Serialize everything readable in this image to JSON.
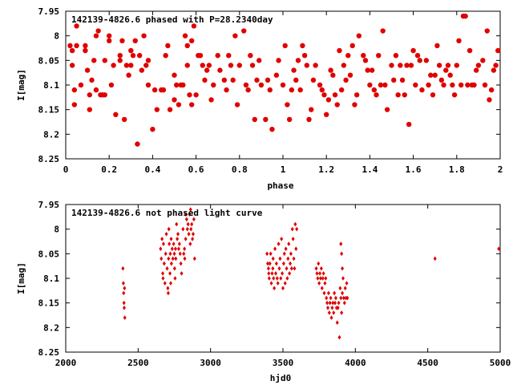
{
  "chart_data": [
    {
      "type": "scatter",
      "title": "142139-4826.6 phased with P=28.2340day",
      "xlabel": "phase",
      "ylabel": "I[mag]",
      "xlim": [
        0,
        2
      ],
      "ylim": [
        8.25,
        7.95
      ],
      "y_inverted": true,
      "xticks": [
        "0",
        "0.2",
        "0.4",
        "0.6",
        "0.8",
        "1",
        "1.2",
        "1.4",
        "1.6",
        "1.8",
        "2"
      ],
      "yticks": [
        "7.95",
        "8",
        "8.05",
        "8.1",
        "8.15",
        "8.2",
        "8.25"
      ],
      "marker": "filled-circle",
      "color": "#e00000",
      "points": [
        [
          0.02,
          8.02
        ],
        [
          0.03,
          8.03
        ],
        [
          0.03,
          8.06
        ],
        [
          0.04,
          8.14
        ],
        [
          0.04,
          8.11
        ],
        [
          0.05,
          7.98
        ],
        [
          0.05,
          8.02
        ],
        [
          0.07,
          8.1
        ],
        [
          0.09,
          8.02
        ],
        [
          0.09,
          8.03
        ],
        [
          0.1,
          8.07
        ],
        [
          0.11,
          8.12
        ],
        [
          0.11,
          8.15
        ],
        [
          0.12,
          8.09
        ],
        [
          0.13,
          8.05
        ],
        [
          0.14,
          8.0
        ],
        [
          0.14,
          8.11
        ],
        [
          0.15,
          7.99
        ],
        [
          0.16,
          8.12
        ],
        [
          0.17,
          8.12
        ],
        [
          0.18,
          8.12
        ],
        [
          0.18,
          8.05
        ],
        [
          0.2,
          8.0
        ],
        [
          0.2,
          8.01
        ],
        [
          0.21,
          8.1
        ],
        [
          0.22,
          8.06
        ],
        [
          0.23,
          8.16
        ],
        [
          0.25,
          8.04
        ],
        [
          0.25,
          8.05
        ],
        [
          0.26,
          8.01
        ],
        [
          0.27,
          8.17
        ],
        [
          0.28,
          8.06
        ],
        [
          0.29,
          8.08
        ],
        [
          0.3,
          8.06
        ],
        [
          0.3,
          8.03
        ],
        [
          0.31,
          8.04
        ],
        [
          0.32,
          8.01
        ],
        [
          0.33,
          8.22
        ],
        [
          0.34,
          8.04
        ],
        [
          0.35,
          8.07
        ],
        [
          0.36,
          8.0
        ],
        [
          0.37,
          8.06
        ],
        [
          0.38,
          8.1
        ],
        [
          0.38,
          8.05
        ],
        [
          0.4,
          8.19
        ],
        [
          0.41,
          8.11
        ],
        [
          0.42,
          8.15
        ],
        [
          0.44,
          8.11
        ],
        [
          0.45,
          8.11
        ],
        [
          0.46,
          8.04
        ],
        [
          0.47,
          8.02
        ],
        [
          0.48,
          8.15
        ],
        [
          0.5,
          8.08
        ],
        [
          0.5,
          8.13
        ],
        [
          0.51,
          8.1
        ],
        [
          0.52,
          8.14
        ],
        [
          0.53,
          8.1
        ],
        [
          0.54,
          8.1
        ],
        [
          0.55,
          8.0
        ],
        [
          0.56,
          8.02
        ],
        [
          0.56,
          8.06
        ],
        [
          0.57,
          8.12
        ],
        [
          0.58,
          8.01
        ],
        [
          0.58,
          8.14
        ],
        [
          0.59,
          7.98
        ],
        [
          0.6,
          8.12
        ],
        [
          0.61,
          8.04
        ],
        [
          0.62,
          8.04
        ],
        [
          0.63,
          8.06
        ],
        [
          0.64,
          8.09
        ],
        [
          0.65,
          8.07
        ],
        [
          0.66,
          8.06
        ],
        [
          0.67,
          8.13
        ],
        [
          0.68,
          8.1
        ],
        [
          0.7,
          8.04
        ],
        [
          0.71,
          8.07
        ],
        [
          0.73,
          8.09
        ],
        [
          0.74,
          8.11
        ],
        [
          0.75,
          8.04
        ],
        [
          0.76,
          8.06
        ],
        [
          0.77,
          8.09
        ],
        [
          0.78,
          8.0
        ],
        [
          0.79,
          8.14
        ],
        [
          0.8,
          8.06
        ],
        [
          0.82,
          7.99
        ],
        [
          0.83,
          8.1
        ],
        [
          0.84,
          8.11
        ],
        [
          0.85,
          8.04
        ],
        [
          0.86,
          8.06
        ],
        [
          0.87,
          8.17
        ],
        [
          0.88,
          8.09
        ],
        [
          0.89,
          8.05
        ],
        [
          0.9,
          8.1
        ],
        [
          0.92,
          8.17
        ],
        [
          0.93,
          8.09
        ],
        [
          0.94,
          8.11
        ],
        [
          0.95,
          8.19
        ],
        [
          0.97,
          8.08
        ],
        [
          0.98,
          8.05
        ],
        [
          1.0,
          8.1
        ],
        [
          1.01,
          8.02
        ],
        [
          1.02,
          8.14
        ],
        [
          1.03,
          8.17
        ],
        [
          1.04,
          8.11
        ],
        [
          1.05,
          8.07
        ],
        [
          1.06,
          8.09
        ],
        [
          1.07,
          8.05
        ],
        [
          1.08,
          8.11
        ],
        [
          1.09,
          8.02
        ],
        [
          1.1,
          8.04
        ],
        [
          1.11,
          8.06
        ],
        [
          1.12,
          8.17
        ],
        [
          1.13,
          8.15
        ],
        [
          1.14,
          8.09
        ],
        [
          1.15,
          8.06
        ],
        [
          1.17,
          8.1
        ],
        [
          1.18,
          8.11
        ],
        [
          1.19,
          8.12
        ],
        [
          1.2,
          8.16
        ],
        [
          1.21,
          8.13
        ],
        [
          1.22,
          8.07
        ],
        [
          1.23,
          8.08
        ],
        [
          1.24,
          8.12
        ],
        [
          1.25,
          8.14
        ],
        [
          1.26,
          8.03
        ],
        [
          1.27,
          8.11
        ],
        [
          1.28,
          8.06
        ],
        [
          1.29,
          8.09
        ],
        [
          1.3,
          8.04
        ],
        [
          1.31,
          8.08
        ],
        [
          1.32,
          8.02
        ],
        [
          1.33,
          8.14
        ],
        [
          1.34,
          8.12
        ],
        [
          1.35,
          8.0
        ],
        [
          1.37,
          8.04
        ],
        [
          1.38,
          8.05
        ],
        [
          1.39,
          8.07
        ],
        [
          1.4,
          8.1
        ],
        [
          1.41,
          8.07
        ],
        [
          1.42,
          8.11
        ],
        [
          1.43,
          8.12
        ],
        [
          1.44,
          8.04
        ],
        [
          1.45,
          8.1
        ],
        [
          1.46,
          7.99
        ],
        [
          1.47,
          8.1
        ],
        [
          1.48,
          8.15
        ],
        [
          1.5,
          8.06
        ],
        [
          1.51,
          8.09
        ],
        [
          1.52,
          8.04
        ],
        [
          1.53,
          8.12
        ],
        [
          1.54,
          8.06
        ],
        [
          1.55,
          8.09
        ],
        [
          1.56,
          8.12
        ],
        [
          1.57,
          8.06
        ],
        [
          1.58,
          8.18
        ],
        [
          1.59,
          8.06
        ],
        [
          1.6,
          8.03
        ],
        [
          1.61,
          8.1
        ],
        [
          1.62,
          8.04
        ],
        [
          1.63,
          8.05
        ],
        [
          1.64,
          8.11
        ],
        [
          1.66,
          8.05
        ],
        [
          1.67,
          8.1
        ],
        [
          1.68,
          8.08
        ],
        [
          1.69,
          8.12
        ],
        [
          1.7,
          8.08
        ],
        [
          1.71,
          8.02
        ],
        [
          1.72,
          8.06
        ],
        [
          1.73,
          8.09
        ],
        [
          1.74,
          8.1
        ],
        [
          1.75,
          8.07
        ],
        [
          1.76,
          8.06
        ],
        [
          1.77,
          8.08
        ],
        [
          1.78,
          8.1
        ],
        [
          1.79,
          8.12
        ],
        [
          1.8,
          8.06
        ],
        [
          1.81,
          8.01
        ],
        [
          1.82,
          8.1
        ],
        [
          1.83,
          7.96
        ],
        [
          1.84,
          7.96
        ],
        [
          1.85,
          8.1
        ],
        [
          1.86,
          8.03
        ],
        [
          1.87,
          8.1
        ],
        [
          1.88,
          8.1
        ],
        [
          1.89,
          8.07
        ],
        [
          1.9,
          8.06
        ],
        [
          1.92,
          8.05
        ],
        [
          1.93,
          8.1
        ],
        [
          1.94,
          7.99
        ],
        [
          1.95,
          8.13
        ],
        [
          1.96,
          8.11
        ],
        [
          1.97,
          8.07
        ],
        [
          1.98,
          8.06
        ],
        [
          1.99,
          8.03
        ]
      ]
    },
    {
      "type": "scatter",
      "title": "142139-4826.6 not phased light curve",
      "xlabel": "hjd0",
      "ylabel": "I[mag]",
      "xlim": [
        2000,
        5000
      ],
      "ylim": [
        8.25,
        7.95
      ],
      "y_inverted": true,
      "xticks": [
        "2000",
        "2500",
        "3000",
        "3500",
        "4000",
        "4500",
        "5000"
      ],
      "yticks": [
        "7.95",
        "8",
        "8.05",
        "8.1",
        "8.15",
        "8.2",
        "8.25"
      ],
      "marker": "filled-diamond",
      "color": "#e00000",
      "points": [
        [
          2395,
          8.08
        ],
        [
          2398,
          8.11
        ],
        [
          2400,
          8.13
        ],
        [
          2402,
          8.15
        ],
        [
          2404,
          8.16
        ],
        [
          2406,
          8.12
        ],
        [
          2408,
          8.18
        ],
        [
          2655,
          8.04
        ],
        [
          2660,
          8.06
        ],
        [
          2665,
          8.02
        ],
        [
          2670,
          8.09
        ],
        [
          2672,
          8.1
        ],
        [
          2675,
          8.03
        ],
        [
          2680,
          8.07
        ],
        [
          2685,
          8.11
        ],
        [
          2690,
          8.05
        ],
        [
          2695,
          8.01
        ],
        [
          2700,
          8.08
        ],
        [
          2705,
          8.12
        ],
        [
          2708,
          8.13
        ],
        [
          2710,
          8.06
        ],
        [
          2712,
          8.0
        ],
        [
          2715,
          8.03
        ],
        [
          2720,
          8.09
        ],
        [
          2722,
          8.05
        ],
        [
          2725,
          8.11
        ],
        [
          2728,
          8.02
        ],
        [
          2730,
          8.07
        ],
        [
          2735,
          8.04
        ],
        [
          2740,
          8.06
        ],
        [
          2745,
          8.03
        ],
        [
          2750,
          8.05
        ],
        [
          2752,
          8.08
        ],
        [
          2755,
          8.1
        ],
        [
          2758,
          8.04
        ],
        [
          2760,
          8.06
        ],
        [
          2765,
          7.99
        ],
        [
          2770,
          8.02
        ],
        [
          2775,
          8.01
        ],
        [
          2780,
          8.04
        ],
        [
          2785,
          8.03
        ],
        [
          2790,
          8.05
        ],
        [
          2795,
          8.07
        ],
        [
          2800,
          8.09
        ],
        [
          2810,
          8.0
        ],
        [
          2815,
          8.05
        ],
        [
          2820,
          8.04
        ],
        [
          2822,
          8.06
        ],
        [
          2828,
          8.02
        ],
        [
          2830,
          7.97
        ],
        [
          2835,
          7.98
        ],
        [
          2840,
          8.0
        ],
        [
          2845,
          7.99
        ],
        [
          2850,
          8.01
        ],
        [
          2855,
          7.97
        ],
        [
          2860,
          8.03
        ],
        [
          2862,
          7.96
        ],
        [
          2865,
          8.0
        ],
        [
          2870,
          7.99
        ],
        [
          2875,
          8.02
        ],
        [
          2880,
          8.01
        ],
        [
          2885,
          7.98
        ],
        [
          2890,
          8.06
        ],
        [
          3390,
          8.05
        ],
        [
          3395,
          8.07
        ],
        [
          3400,
          8.08
        ],
        [
          3402,
          8.09
        ],
        [
          3405,
          8.1
        ],
        [
          3410,
          8.07
        ],
        [
          3415,
          8.05
        ],
        [
          3420,
          8.11
        ],
        [
          3425,
          8.09
        ],
        [
          3430,
          8.08
        ],
        [
          3432,
          8.06
        ],
        [
          3435,
          8.1
        ],
        [
          3440,
          8.12
        ],
        [
          3445,
          8.04
        ],
        [
          3450,
          8.09
        ],
        [
          3455,
          8.07
        ],
        [
          3460,
          8.1
        ],
        [
          3465,
          8.11
        ],
        [
          3470,
          8.03
        ],
        [
          3475,
          8.08
        ],
        [
          3480,
          8.06
        ],
        [
          3485,
          8.1
        ],
        [
          3490,
          8.02
        ],
        [
          3495,
          8.09
        ],
        [
          3500,
          8.12
        ],
        [
          3505,
          8.07
        ],
        [
          3510,
          8.05
        ],
        [
          3515,
          8.11
        ],
        [
          3520,
          8.04
        ],
        [
          3525,
          8.08
        ],
        [
          3530,
          8.1
        ],
        [
          3535,
          8.06
        ],
        [
          3540,
          8.03
        ],
        [
          3545,
          8.09
        ],
        [
          3550,
          8.07
        ],
        [
          3555,
          8.05
        ],
        [
          3560,
          8.08
        ],
        [
          3565,
          8.0
        ],
        [
          3570,
          8.02
        ],
        [
          3575,
          8.06
        ],
        [
          3580,
          8.08
        ],
        [
          3585,
          7.99
        ],
        [
          3590,
          8.04
        ],
        [
          3595,
          8.0
        ],
        [
          3730,
          8.08
        ],
        [
          3735,
          8.09
        ],
        [
          3740,
          8.1
        ],
        [
          3745,
          8.07
        ],
        [
          3750,
          8.11
        ],
        [
          3755,
          8.09
        ],
        [
          3760,
          8.1
        ],
        [
          3765,
          8.08
        ],
        [
          3770,
          8.12
        ],
        [
          3775,
          8.1
        ],
        [
          3780,
          8.09
        ],
        [
          3785,
          8.13
        ],
        [
          3790,
          8.11
        ],
        [
          3795,
          8.1
        ],
        [
          3800,
          8.14
        ],
        [
          3805,
          8.15
        ],
        [
          3810,
          8.16
        ],
        [
          3815,
          8.13
        ],
        [
          3820,
          8.17
        ],
        [
          3825,
          8.15
        ],
        [
          3830,
          8.14
        ],
        [
          3835,
          8.18
        ],
        [
          3840,
          8.16
        ],
        [
          3845,
          8.15
        ],
        [
          3850,
          8.17
        ],
        [
          3855,
          8.13
        ],
        [
          3860,
          8.15
        ],
        [
          3865,
          8.14
        ],
        [
          3870,
          8.16
        ],
        [
          3875,
          8.19
        ],
        [
          3880,
          8.16
        ],
        [
          3885,
          8.15
        ],
        [
          3890,
          8.22
        ],
        [
          3895,
          8.12
        ],
        [
          3900,
          8.14
        ],
        [
          3905,
          8.17
        ],
        [
          3910,
          8.13
        ],
        [
          3915,
          8.1
        ],
        [
          3920,
          8.14
        ],
        [
          3925,
          8.15
        ],
        [
          3930,
          8.12
        ],
        [
          3935,
          8.14
        ],
        [
          3940,
          8.11
        ],
        [
          3945,
          8.14
        ],
        [
          3900,
          8.03
        ],
        [
          3905,
          8.05
        ],
        [
          3910,
          8.08
        ],
        [
          4550,
          8.06
        ],
        [
          4990,
          8.04
        ]
      ]
    }
  ]
}
